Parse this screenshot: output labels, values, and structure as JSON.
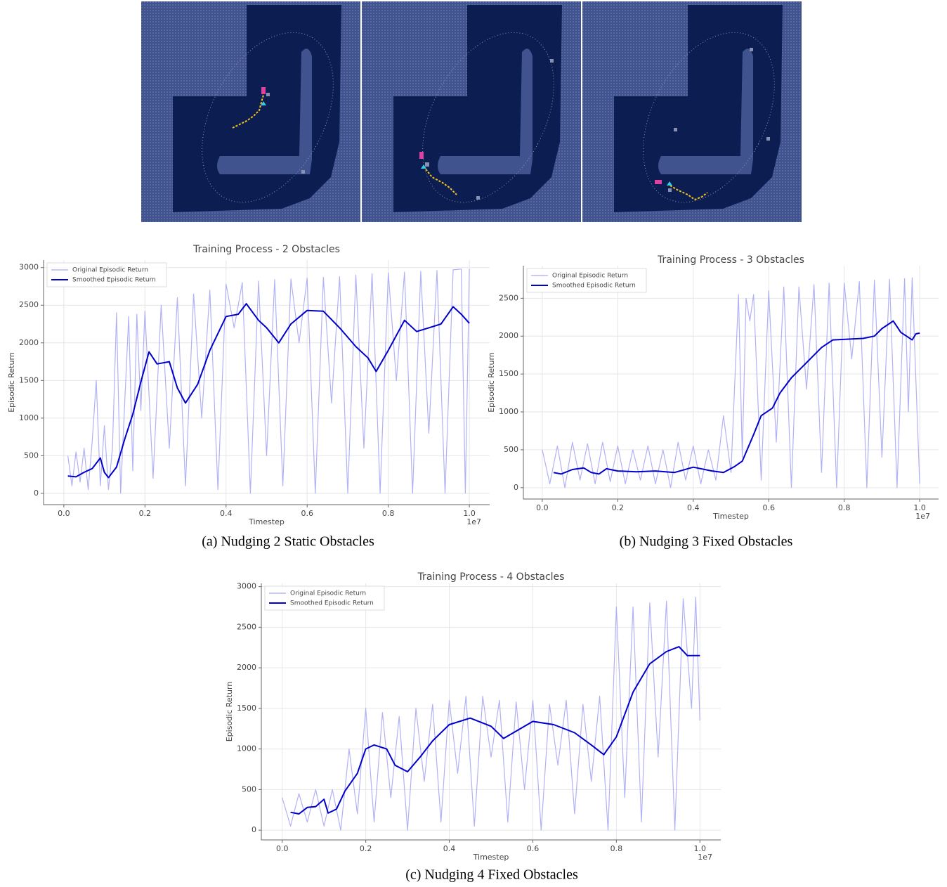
{
  "chart_data": [
    {
      "type": "line",
      "title": "Training Process - 2 Obstacles",
      "caption": "(a) Nudging 2 Static Obstacles",
      "xlabel": "Timestep",
      "ylabel": "Episodic Return",
      "x_offset_label": "1e7",
      "xlim": [
        -0.05,
        1.05
      ],
      "ylim": [
        -150,
        3100
      ],
      "xticks": [
        {
          "value": 0,
          "label": "0.0"
        },
        0.2,
        0.4,
        0.6,
        0.8,
        {
          "value": 1,
          "label": "1.0"
        }
      ],
      "yticks": [
        0,
        500,
        1000,
        1500,
        2000,
        2500,
        3000
      ],
      "grid": true,
      "legend": "upper left",
      "series": [
        {
          "name": "Original Episodic Return",
          "color": "#a9a9f5",
          "x": [
            0.01,
            0.02,
            0.03,
            0.04,
            0.05,
            0.06,
            0.07,
            0.08,
            0.09,
            0.1,
            0.11,
            0.12,
            0.13,
            0.14,
            0.15,
            0.16,
            0.17,
            0.18,
            0.19,
            0.2,
            0.22,
            0.24,
            0.26,
            0.28,
            0.3,
            0.32,
            0.34,
            0.36,
            0.38,
            0.4,
            0.42,
            0.44,
            0.46,
            0.48,
            0.5,
            0.52,
            0.54,
            0.56,
            0.58,
            0.6,
            0.62,
            0.64,
            0.66,
            0.68,
            0.7,
            0.72,
            0.74,
            0.76,
            0.78,
            0.8,
            0.82,
            0.84,
            0.86,
            0.88,
            0.9,
            0.92,
            0.94,
            0.96,
            0.98,
            0.99,
            1.0
          ],
          "values": [
            500,
            100,
            550,
            150,
            600,
            50,
            700,
            1500,
            100,
            900,
            50,
            600,
            2400,
            0,
            1200,
            2350,
            300,
            2380,
            1100,
            2420,
            200,
            2500,
            600,
            2600,
            100,
            2650,
            1000,
            2700,
            50,
            2780,
            2200,
            2800,
            0,
            2820,
            500,
            2840,
            100,
            2850,
            2000,
            2860,
            0,
            2870,
            1200,
            2880,
            0,
            2900,
            600,
            2920,
            0,
            2930,
            1500,
            2940,
            0,
            2950,
            800,
            2960,
            0,
            2970,
            2980,
            0,
            2980
          ]
        },
        {
          "name": "Smoothed Episodic Return",
          "color": "#0000cc",
          "x": [
            0.01,
            0.03,
            0.05,
            0.07,
            0.09,
            0.1,
            0.11,
            0.13,
            0.15,
            0.17,
            0.19,
            0.21,
            0.23,
            0.26,
            0.28,
            0.3,
            0.33,
            0.36,
            0.4,
            0.43,
            0.45,
            0.48,
            0.5,
            0.53,
            0.56,
            0.6,
            0.64,
            0.68,
            0.72,
            0.75,
            0.77,
            0.8,
            0.84,
            0.87,
            0.9,
            0.93,
            0.96,
            0.98,
            1.0
          ],
          "values": [
            230,
            220,
            280,
            330,
            470,
            280,
            210,
            350,
            720,
            1050,
            1480,
            1880,
            1720,
            1750,
            1400,
            1200,
            1450,
            1900,
            2350,
            2380,
            2520,
            2300,
            2200,
            2000,
            2250,
            2430,
            2420,
            2200,
            1950,
            1800,
            1620,
            1900,
            2300,
            2150,
            2200,
            2250,
            2480,
            2380,
            2260
          ]
        }
      ]
    },
    {
      "type": "line",
      "title": "Training Process - 3 Obstacles",
      "caption": "(b) Nudging 3 Fixed Obstacles",
      "xlabel": "Timestep",
      "ylabel": "Episodic Return",
      "x_offset_label": "1e7",
      "xlim": [
        -0.05,
        1.05
      ],
      "ylim": [
        -150,
        2930
      ],
      "xticks": [
        {
          "value": 0,
          "label": "0.0"
        },
        0.2,
        0.4,
        0.6,
        0.8,
        {
          "value": 1,
          "label": "1.0"
        }
      ],
      "yticks": [
        0,
        500,
        1000,
        1500,
        2000,
        2500
      ],
      "grid": true,
      "legend": "upper left",
      "series": [
        {
          "name": "Original Episodic Return",
          "color": "#a9a9f5",
          "x": [
            0.0,
            0.02,
            0.04,
            0.06,
            0.08,
            0.1,
            0.12,
            0.14,
            0.16,
            0.18,
            0.2,
            0.22,
            0.24,
            0.26,
            0.28,
            0.3,
            0.32,
            0.34,
            0.36,
            0.38,
            0.4,
            0.42,
            0.44,
            0.46,
            0.48,
            0.5,
            0.52,
            0.53,
            0.54,
            0.55,
            0.56,
            0.58,
            0.6,
            0.62,
            0.64,
            0.66,
            0.68,
            0.7,
            0.72,
            0.74,
            0.76,
            0.78,
            0.8,
            0.82,
            0.84,
            0.86,
            0.88,
            0.9,
            0.92,
            0.94,
            0.96,
            0.97,
            0.98,
            1.0
          ],
          "values": [
            500,
            50,
            550,
            0,
            600,
            100,
            580,
            50,
            600,
            80,
            550,
            50,
            500,
            100,
            550,
            50,
            500,
            0,
            600,
            100,
            550,
            50,
            500,
            100,
            950,
            200,
            2550,
            400,
            2500,
            2200,
            2550,
            100,
            2600,
            600,
            2650,
            0,
            2650,
            1300,
            2680,
            200,
            2700,
            0,
            2700,
            1700,
            2720,
            0,
            2740,
            400,
            2750,
            0,
            2760,
            1000,
            2770,
            50
          ]
        },
        {
          "name": "Smoothed Episodic Return",
          "color": "#0000cc",
          "x": [
            0.03,
            0.05,
            0.08,
            0.11,
            0.13,
            0.15,
            0.17,
            0.2,
            0.25,
            0.3,
            0.35,
            0.4,
            0.45,
            0.48,
            0.51,
            0.53,
            0.56,
            0.58,
            0.61,
            0.63,
            0.66,
            0.7,
            0.74,
            0.77,
            0.85,
            0.88,
            0.9,
            0.93,
            0.95,
            0.98,
            0.99,
            1.0
          ],
          "values": [
            200,
            180,
            240,
            260,
            200,
            180,
            250,
            220,
            210,
            220,
            200,
            270,
            220,
            200,
            280,
            350,
            700,
            950,
            1050,
            1250,
            1450,
            1650,
            1850,
            1950,
            1970,
            2000,
            2100,
            2200,
            2050,
            1950,
            2030,
            2040
          ]
        }
      ]
    },
    {
      "type": "line",
      "title": "Training Process - 4 Obstacles",
      "caption": "(c) Nudging 4 Fixed Obstacles",
      "xlabel": "Timestep",
      "ylabel": "Episodic Return",
      "x_offset_label": "1e7",
      "xlim": [
        -0.05,
        1.05
      ],
      "ylim": [
        -120,
        3040
      ],
      "xticks": [
        {
          "value": 0,
          "label": "0.0"
        },
        0.2,
        0.4,
        0.6,
        0.8,
        {
          "value": 1,
          "label": "1.0"
        }
      ],
      "yticks": [
        0,
        500,
        1000,
        1500,
        2000,
        2500,
        3000
      ],
      "grid": true,
      "legend": "upper left",
      "series": [
        {
          "name": "Original Episodic Return",
          "color": "#a9a9f5",
          "x": [
            0.0,
            0.02,
            0.04,
            0.06,
            0.08,
            0.1,
            0.12,
            0.14,
            0.16,
            0.18,
            0.2,
            0.22,
            0.24,
            0.26,
            0.28,
            0.3,
            0.32,
            0.34,
            0.36,
            0.38,
            0.4,
            0.42,
            0.44,
            0.46,
            0.48,
            0.5,
            0.52,
            0.54,
            0.56,
            0.58,
            0.6,
            0.62,
            0.64,
            0.66,
            0.68,
            0.7,
            0.72,
            0.74,
            0.76,
            0.78,
            0.8,
            0.82,
            0.84,
            0.86,
            0.88,
            0.9,
            0.92,
            0.94,
            0.96,
            0.98,
            0.99,
            1.0
          ],
          "values": [
            400,
            50,
            450,
            100,
            500,
            50,
            500,
            0,
            1000,
            200,
            1500,
            100,
            1450,
            400,
            1400,
            0,
            1500,
            600,
            1550,
            100,
            1600,
            700,
            1650,
            50,
            1650,
            900,
            1600,
            100,
            1580,
            500,
            1600,
            0,
            1550,
            800,
            1600,
            200,
            1550,
            600,
            1650,
            0,
            2750,
            400,
            2750,
            100,
            2800,
            900,
            2820,
            0,
            2850,
            1500,
            2870,
            1350
          ]
        },
        {
          "name": "Smoothed Episodic Return",
          "color": "#0000cc",
          "x": [
            0.02,
            0.04,
            0.06,
            0.08,
            0.1,
            0.11,
            0.13,
            0.15,
            0.18,
            0.2,
            0.22,
            0.25,
            0.27,
            0.3,
            0.33,
            0.36,
            0.4,
            0.45,
            0.5,
            0.53,
            0.56,
            0.6,
            0.65,
            0.7,
            0.74,
            0.77,
            0.8,
            0.84,
            0.88,
            0.92,
            0.95,
            0.97,
            1.0
          ],
          "values": [
            220,
            200,
            280,
            290,
            380,
            210,
            260,
            480,
            700,
            1000,
            1050,
            1000,
            800,
            720,
            900,
            1100,
            1300,
            1380,
            1280,
            1130,
            1220,
            1340,
            1300,
            1200,
            1050,
            930,
            1150,
            1700,
            2050,
            2200,
            2260,
            2150,
            2150
          ]
        }
      ]
    }
  ]
}
